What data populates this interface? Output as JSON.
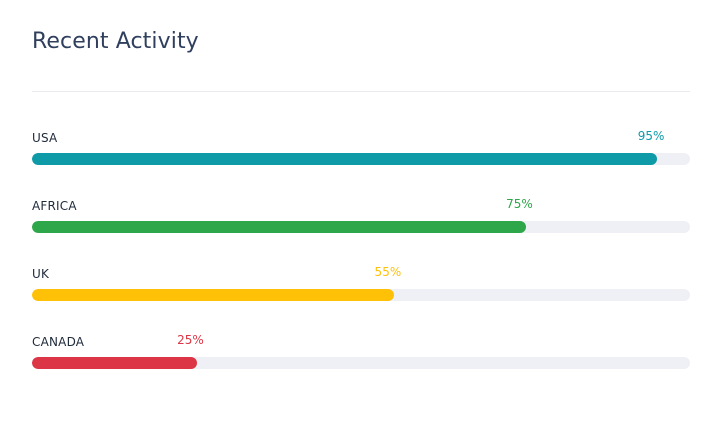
{
  "card": {
    "title": "Recent Activity"
  },
  "rows": [
    {
      "label": "USA",
      "percent_text": "95%",
      "value": 95,
      "color": "#0f9aa8"
    },
    {
      "label": "AFRICA",
      "percent_text": "75%",
      "value": 75,
      "color": "#2ea64a"
    },
    {
      "label": "UK",
      "percent_text": "55%",
      "value": 55,
      "color": "#ffc107"
    },
    {
      "label": "CANADA",
      "percent_text": "25%",
      "value": 25,
      "color": "#dc3545"
    }
  ]
}
